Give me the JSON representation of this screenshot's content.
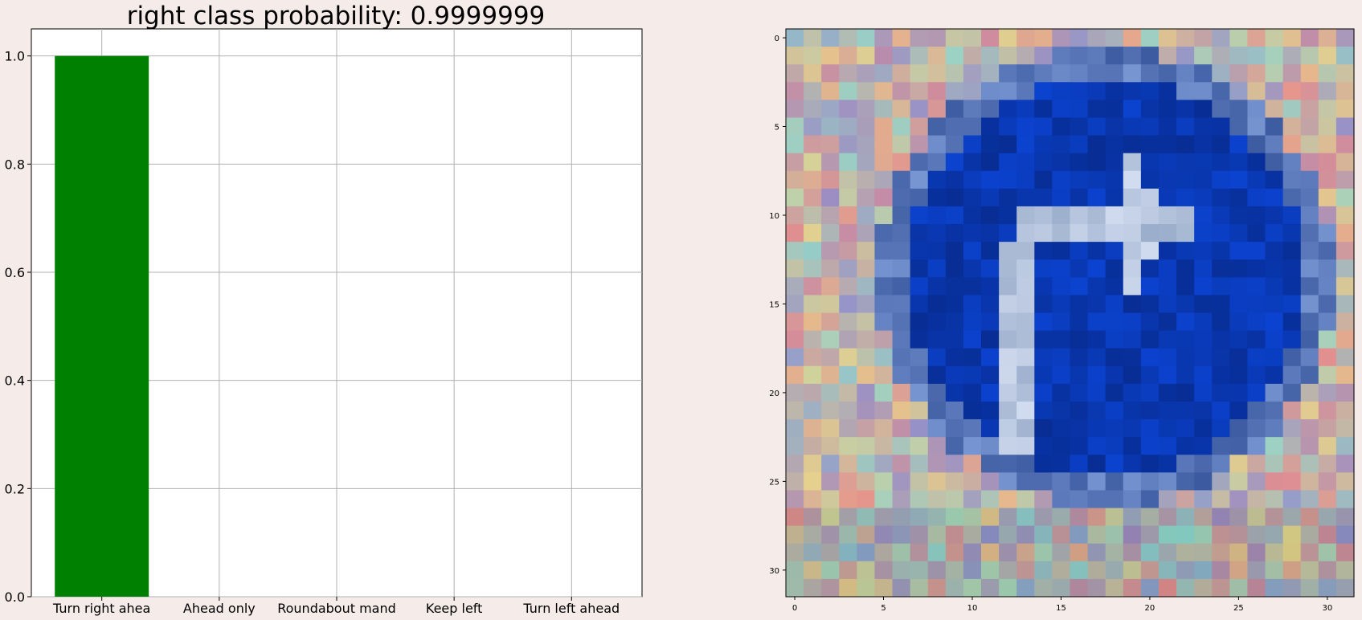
{
  "chart_data": [
    {
      "type": "bar",
      "title": "right class probability: 0.9999999",
      "categories": [
        "Turn right ahea",
        "Ahead only",
        "Roundabout mand",
        "Keep left",
        "Turn left ahead"
      ],
      "values": [
        1.0,
        0.0,
        0.0,
        0.0,
        0.0
      ],
      "bar_color": "#008000",
      "ylim": [
        0,
        1.05
      ],
      "yticks": [
        "0.0",
        "0.2",
        "0.4",
        "0.6",
        "0.8",
        "1.0"
      ],
      "grid": true,
      "xlabel": "",
      "ylabel": ""
    },
    {
      "type": "heatmap",
      "description_tag": "image-32x32",
      "xticks": [
        "0",
        "5",
        "10",
        "15",
        "20",
        "25",
        "30"
      ],
      "yticks": [
        "0",
        "5",
        "10",
        "15",
        "20",
        "25",
        "30"
      ]
    }
  ]
}
